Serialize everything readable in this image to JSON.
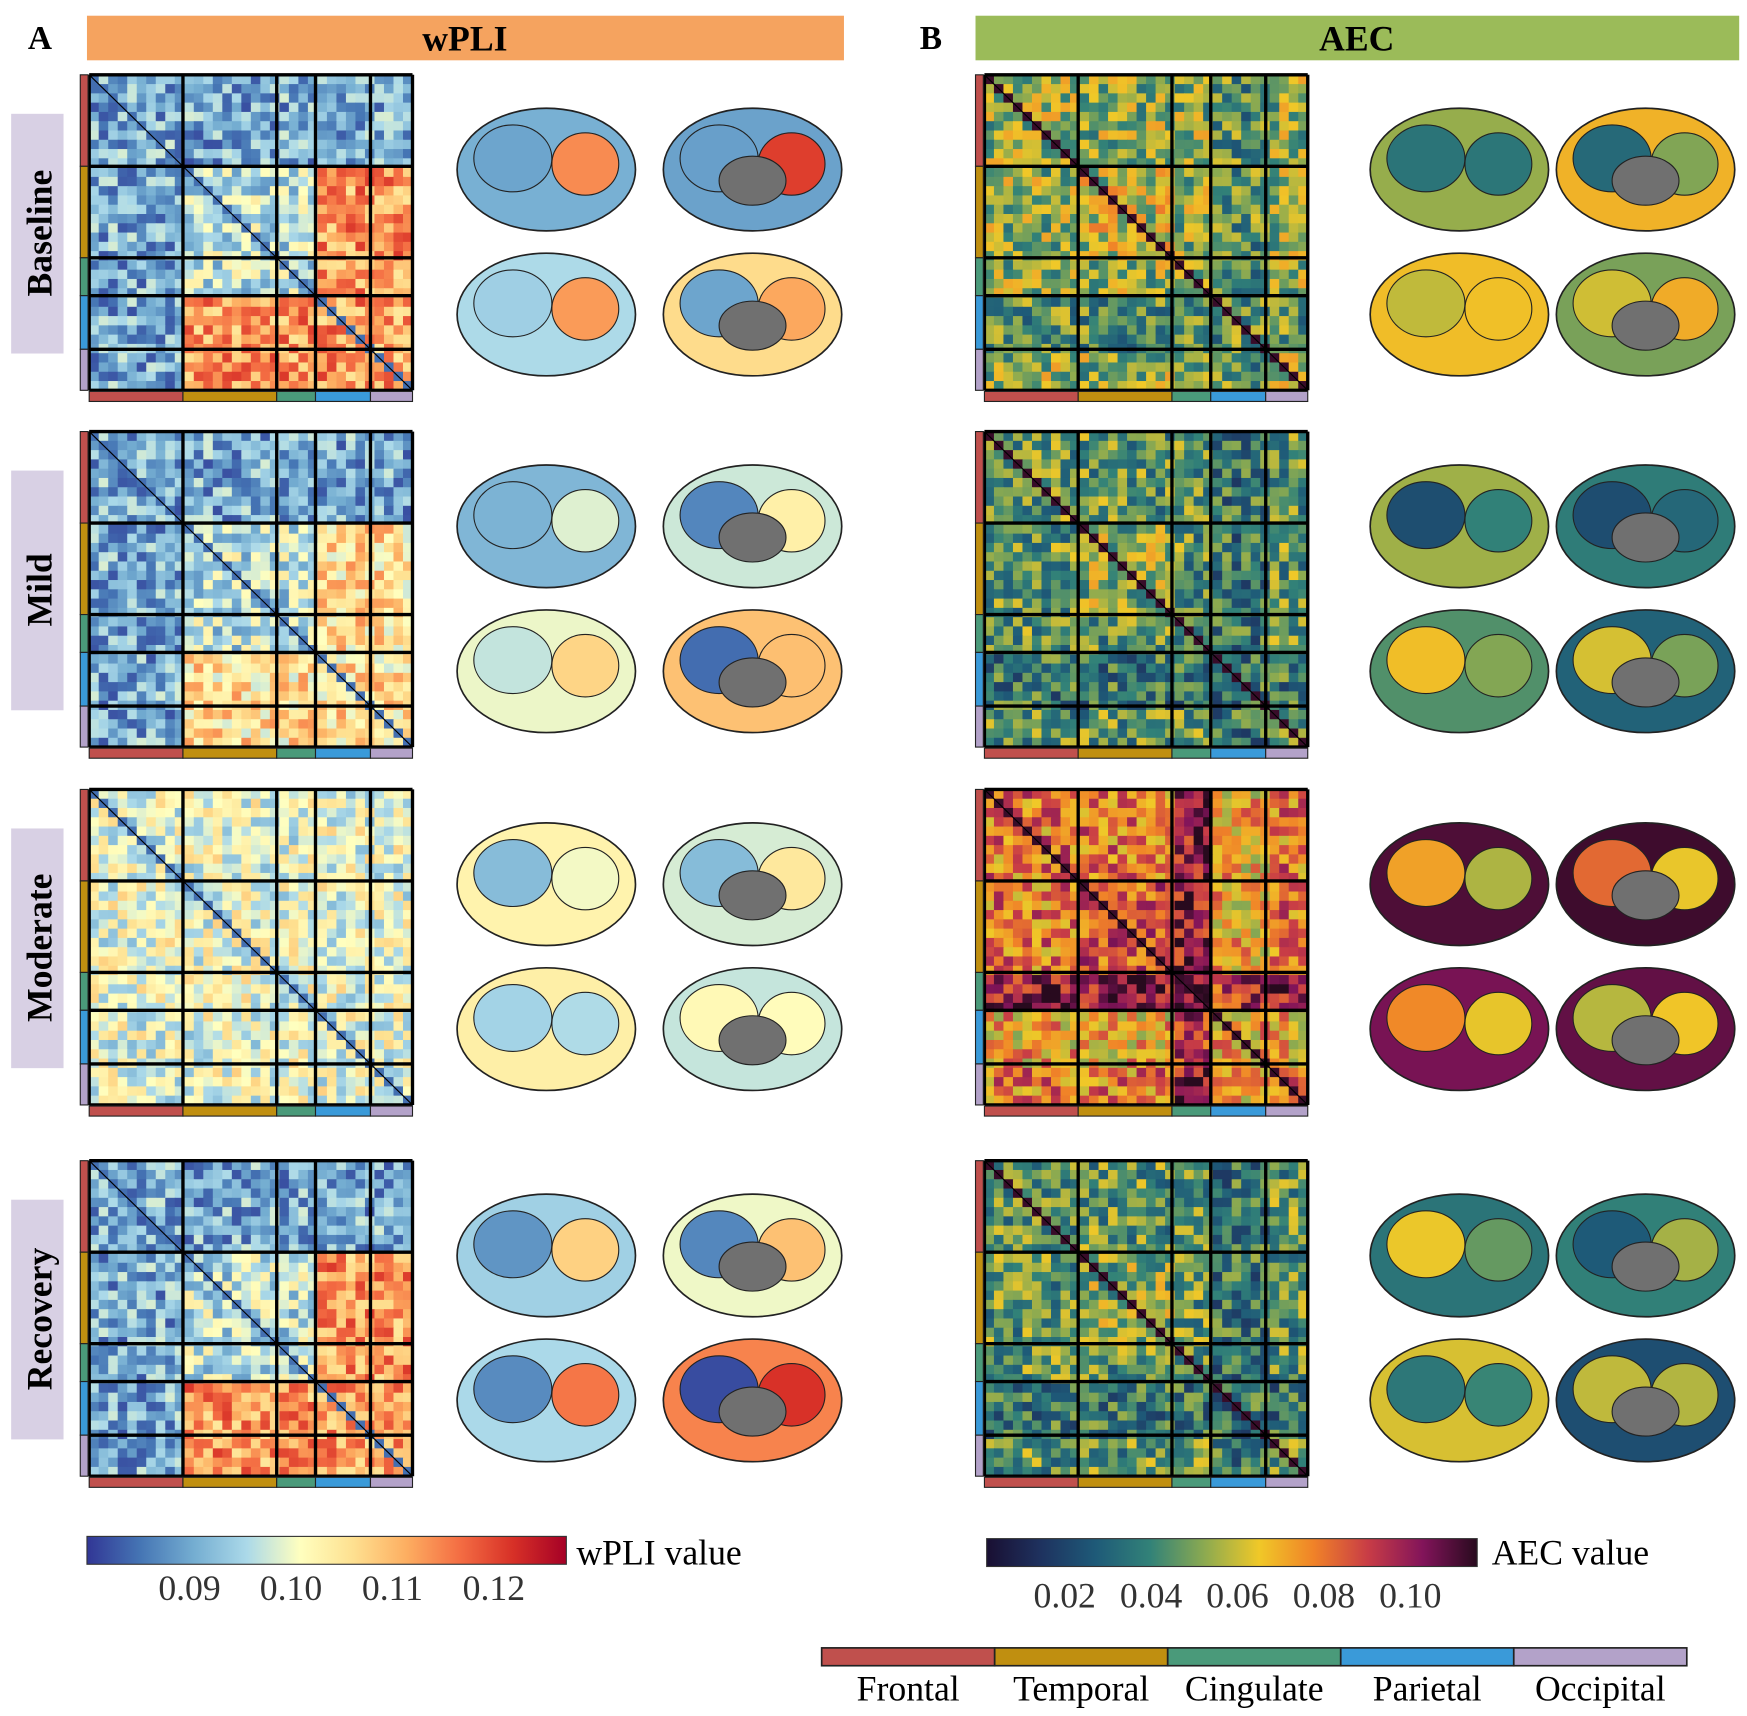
{
  "panels": [
    {
      "label": "A",
      "title": "wPLI",
      "colorbar": {
        "label": "wPLI value",
        "ticks": [
          "0.09",
          "0.10",
          "0.11",
          "0.12"
        ]
      }
    },
    {
      "label": "B",
      "title": "AEC",
      "colorbar": {
        "label": "AEC value",
        "ticks": [
          "0.02",
          "0.04",
          "0.06",
          "0.08",
          "0.10"
        ]
      }
    }
  ],
  "rows": [
    "Baseline",
    "Mild",
    "Moderate",
    "Recovery"
  ],
  "regions": [
    "Frontal",
    "Temporal",
    "Cingulate",
    "Parietal",
    "Occipital"
  ]
}
